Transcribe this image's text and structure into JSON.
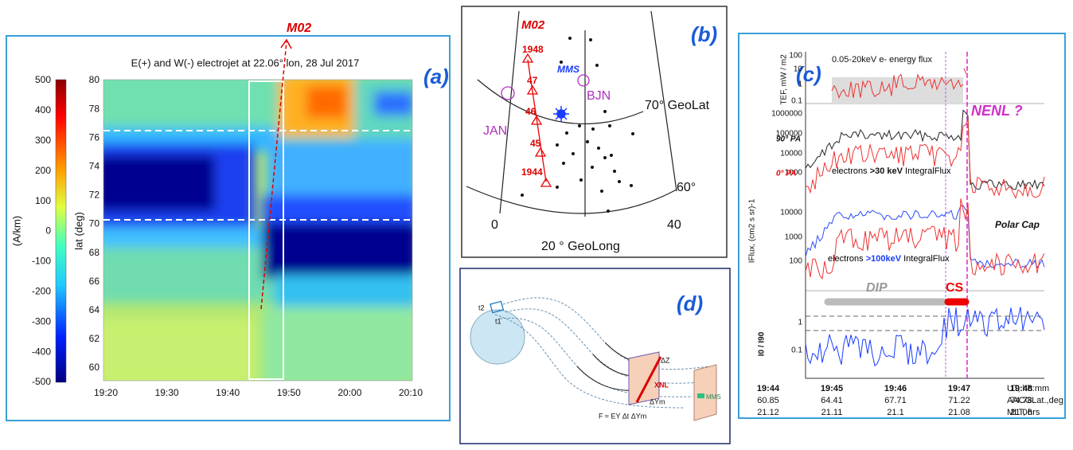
{
  "panel_a": {
    "label": "(a)",
    "marker": "M02",
    "title": "E(+) and W(-) electrojet at 22.06° lon, 28 Jul 2017",
    "colorbar_label": "(A/km)",
    "colorbar_ticks": [
      "500",
      "400",
      "300",
      "200",
      "100",
      "0",
      "-100",
      "-200",
      "-300",
      "-400",
      "-500"
    ],
    "y_axis_label": "lat (deg)",
    "y_ticks": [
      "80",
      "78",
      "76",
      "74",
      "72",
      "70",
      "68",
      "66",
      "64",
      "62",
      "60"
    ],
    "x_ticks": [
      "19:20",
      "19:30",
      "19:40",
      "19:50",
      "20:00",
      "20:10"
    ]
  },
  "panel_b": {
    "label": "(b)",
    "marker": "M02",
    "times": [
      "1948",
      "47",
      "46",
      "45",
      "1944"
    ],
    "stations": [
      "MMS",
      "JAN",
      "BJN"
    ],
    "lat_labels": [
      "70° GeoLat",
      "60°"
    ],
    "lon_labels": [
      "0",
      "40"
    ],
    "lon_title": "20 ° GeoLong"
  },
  "panel_c": {
    "label": "(c)",
    "tef_axis_label": "TEF, mW / m2",
    "tef_ticks": [
      "100",
      "10",
      "1",
      "0.1"
    ],
    "tef_note": "0.05-20keV  e- energy flux",
    "nenl": "NENL ?",
    "flux1_ticks": [
      "1000000",
      "100000",
      "10000",
      "1000"
    ],
    "pa90": "90° PA",
    "pa0": "0° PA",
    "flux1_note": [
      "electrons ",
      ">30 keV",
      " IntegralFlux"
    ],
    "flux_axis_label": "IFlux, (cm2 s sr)-1",
    "flux2_ticks": [
      "10000",
      "1000",
      "100"
    ],
    "polar_cap": "Polar Cap",
    "flux2_note": [
      "electrons ",
      ">100keV",
      " IntegralFlux"
    ],
    "dip": "DIP",
    "cs": "CS",
    "ratio_axis_label": "I0 / I90",
    "ratio_ticks": [
      "1",
      "0.1"
    ],
    "time_ticks": [
      "19:44",
      "19:45",
      "19:46",
      "19:47",
      "19:48"
    ],
    "time_unit": "UT, hh:mm",
    "lat_row": [
      "60.85",
      "64.41",
      "67.71",
      "71.22",
      "74.78"
    ],
    "lat_unit": "AACGLat.,deg",
    "mlt_row": [
      "21.12",
      "21.11",
      "21.1",
      "21.08",
      "21.06"
    ],
    "mlt_unit": "MLT, hrs"
  },
  "panel_d": {
    "label": "(d)",
    "t2": "t2",
    "t1": "t1",
    "dz": "ΔZ",
    "xnl": "XNL",
    "dy": "ΔYm",
    "mms": "MMS",
    "formula": "F ≈ EY Δt ΔYm"
  }
}
